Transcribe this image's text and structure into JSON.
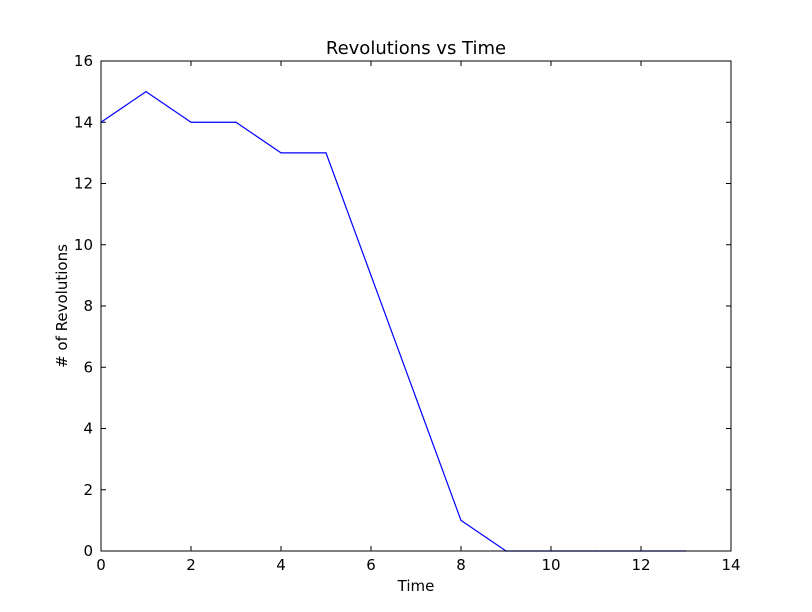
{
  "chart_data": {
    "type": "line",
    "title": "Revolutions vs Time",
    "xlabel": "Time",
    "ylabel": "# of Revolutions",
    "xlim": [
      0,
      14
    ],
    "ylim": [
      0,
      16
    ],
    "xticks": [
      0,
      2,
      4,
      6,
      8,
      10,
      12,
      14
    ],
    "yticks": [
      0,
      2,
      4,
      6,
      8,
      10,
      12,
      14,
      16
    ],
    "grid": false,
    "series": [
      {
        "color": "#0000ff",
        "x": [
          0,
          1,
          2,
          3,
          4,
          5,
          6,
          7,
          8,
          9,
          10,
          11,
          12,
          13
        ],
        "y": [
          14,
          15,
          14,
          14,
          13,
          13,
          9,
          5,
          1,
          0,
          0,
          0,
          0,
          0
        ]
      }
    ]
  }
}
